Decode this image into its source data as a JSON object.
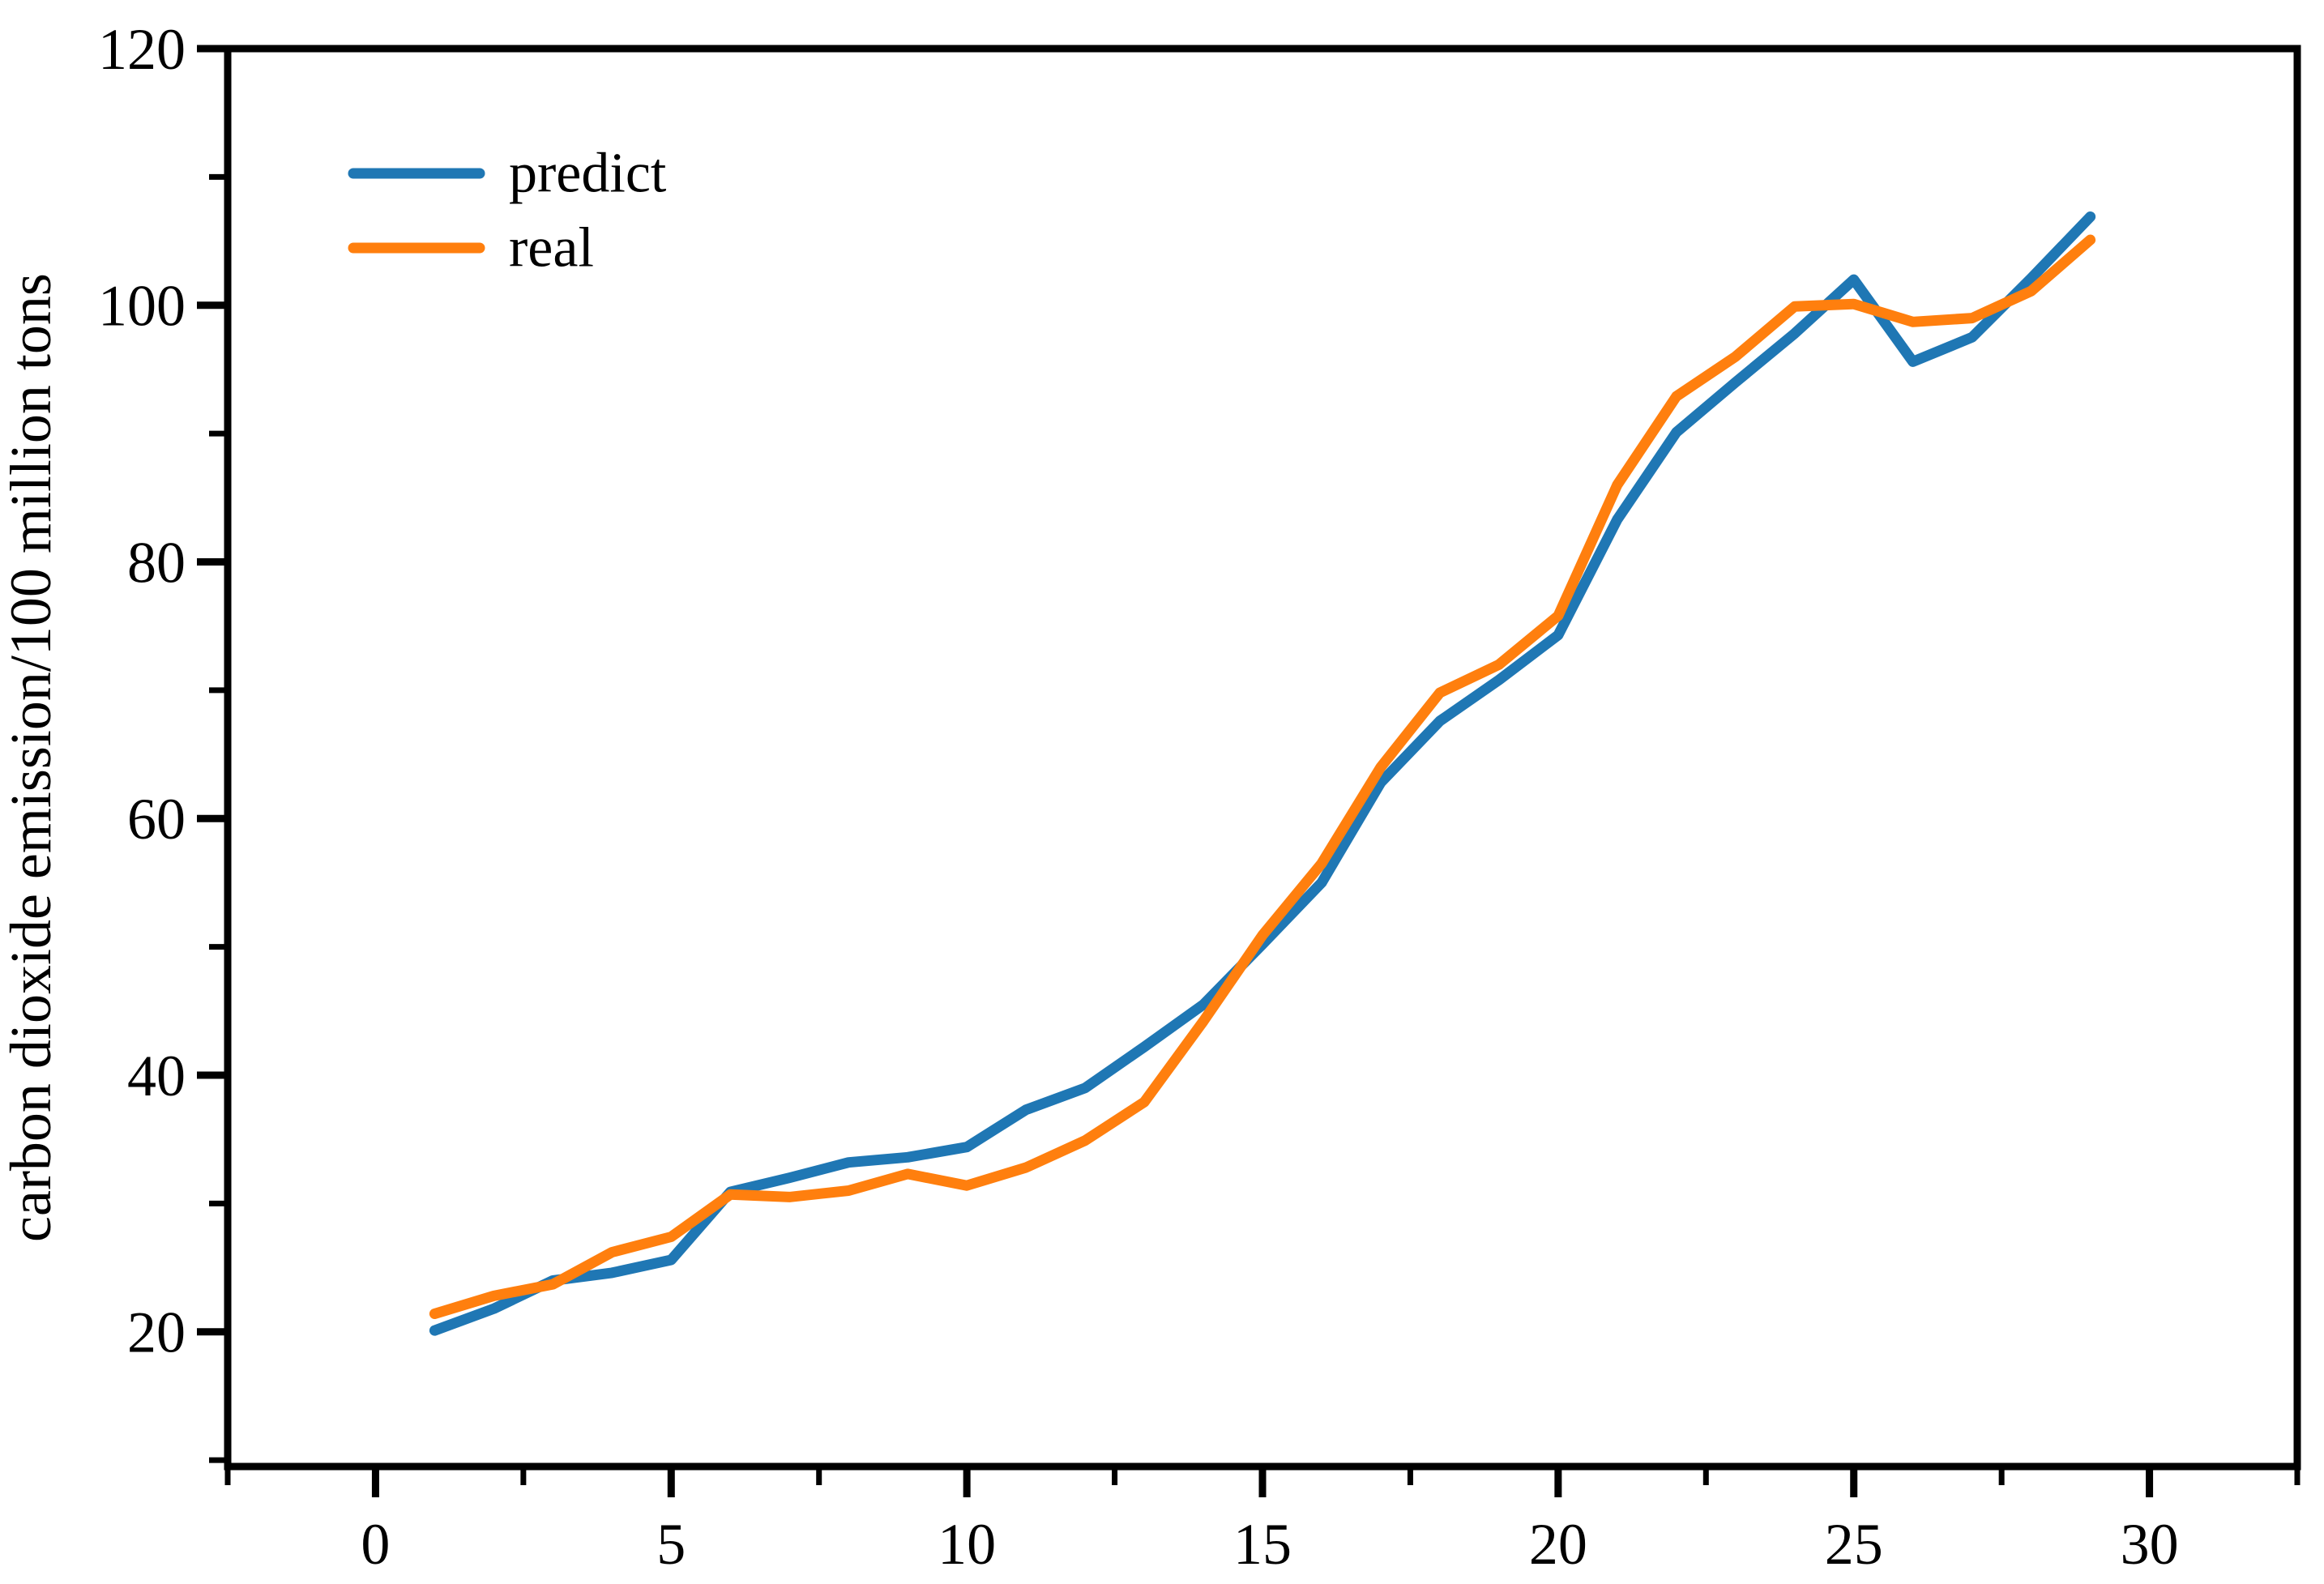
{
  "legend": {
    "items": [
      {
        "label": "predict",
        "color": "#1f77b4"
      },
      {
        "label": "real",
        "color": "#ff7f0e"
      }
    ]
  },
  "chart_data": {
    "type": "line",
    "title": "",
    "xlabel": "",
    "ylabel": "carbon dioxide emission/100 million tons",
    "x": [
      1,
      2,
      3,
      4,
      5,
      6,
      7,
      8,
      9,
      10,
      11,
      12,
      13,
      14,
      15,
      16,
      17,
      18,
      19,
      20,
      21,
      22,
      23,
      24,
      25,
      26,
      27,
      28,
      29
    ],
    "series": [
      {
        "name": "predict",
        "color": "#1f77b4",
        "values": [
          20.1,
          21.8,
          24.0,
          24.6,
          25.6,
          30.9,
          32.0,
          33.2,
          33.6,
          34.4,
          37.3,
          39.0,
          42.2,
          45.5,
          50.2,
          55.0,
          62.8,
          67.6,
          70.8,
          74.3,
          83.3,
          90.1,
          94.0,
          97.8,
          102.0,
          95.6,
          97.5,
          102.1,
          106.9
        ]
      },
      {
        "name": "real",
        "color": "#ff7f0e",
        "values": [
          21.4,
          22.8,
          23.7,
          26.2,
          27.4,
          30.7,
          30.5,
          31.0,
          32.3,
          31.4,
          32.8,
          34.9,
          37.9,
          44.2,
          50.9,
          56.5,
          64.0,
          69.8,
          72.0,
          75.8,
          86.0,
          92.9,
          96.0,
          99.9,
          100.1,
          98.7,
          99.0,
          101.1,
          105.1
        ]
      }
    ],
    "xlim": [
      -2.5,
      32.5
    ],
    "ylim": [
      9.5,
      120
    ],
    "xticks": [
      0,
      5,
      10,
      15,
      20,
      25,
      30
    ],
    "yticks": [
      20,
      40,
      60,
      80,
      100,
      120
    ],
    "xminorticks": [
      -2.5,
      2.5,
      7.5,
      12.5,
      17.5,
      22.5,
      27.5,
      32.5
    ],
    "yminorticks": [
      10,
      30,
      50,
      70,
      90,
      110
    ],
    "grid": false,
    "legend_position": "upper left inside"
  }
}
